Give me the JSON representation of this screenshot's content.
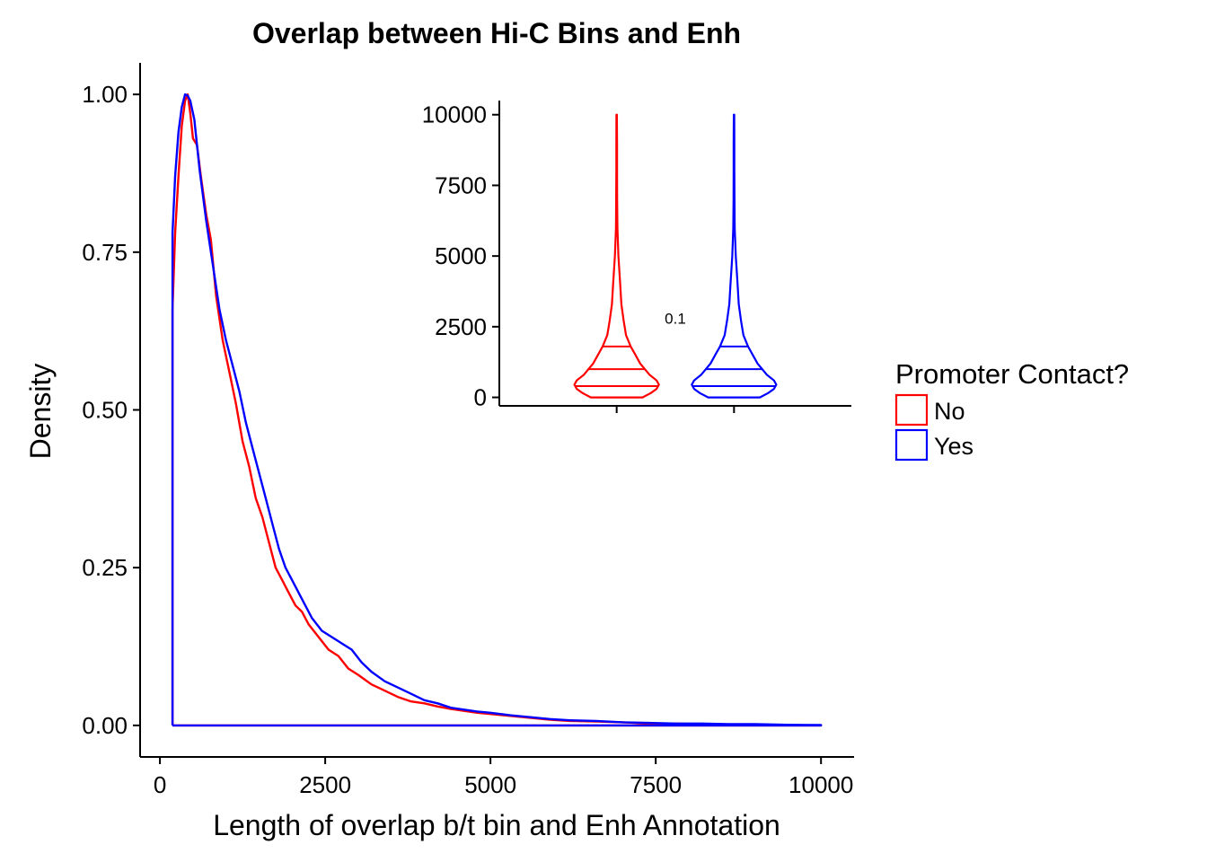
{
  "chart_data": [
    {
      "type": "area",
      "title": "Overlap between Hi-C Bins and Enh",
      "xlabel": "Length of overlap b/t bin and Enh Annotation",
      "ylabel": "Density",
      "xlim": [
        -300,
        10500
      ],
      "ylim": [
        -0.05,
        1.05
      ],
      "x_ticks": [
        "0",
        "2500",
        "5000",
        "7500",
        "10000"
      ],
      "y_ticks": [
        "0.00",
        "0.25",
        "0.50",
        "0.75",
        "1.00"
      ],
      "grid": false,
      "legend": {
        "title": "Promoter Contact?",
        "placement": "right",
        "entries": [
          "No",
          "Yes"
        ]
      },
      "series": [
        {
          "name": "No",
          "color": "#FF0000",
          "x": [
            190,
            190,
            230,
            280,
            330,
            380,
            420,
            460,
            500,
            560,
            620,
            700,
            770,
            850,
            950,
            1050,
            1150,
            1250,
            1350,
            1450,
            1550,
            1650,
            1750,
            1850,
            1950,
            2050,
            2150,
            2250,
            2400,
            2550,
            2700,
            2850,
            3000,
            3200,
            3400,
            3600,
            3800,
            4000,
            4200,
            4400,
            4600,
            4800,
            5000,
            5300,
            5600,
            5900,
            6200,
            6600,
            7000,
            7400,
            7800,
            8200,
            8600,
            9000,
            9500,
            10000,
            10000,
            190
          ],
          "y": [
            0.0,
            0.66,
            0.78,
            0.87,
            0.95,
            0.99,
            1.0,
            0.97,
            0.93,
            0.92,
            0.87,
            0.81,
            0.77,
            0.68,
            0.61,
            0.56,
            0.51,
            0.45,
            0.41,
            0.36,
            0.33,
            0.29,
            0.25,
            0.23,
            0.21,
            0.19,
            0.18,
            0.16,
            0.14,
            0.12,
            0.11,
            0.09,
            0.08,
            0.065,
            0.055,
            0.045,
            0.038,
            0.035,
            0.03,
            0.026,
            0.023,
            0.02,
            0.018,
            0.015,
            0.012,
            0.009,
            0.007,
            0.006,
            0.005,
            0.003,
            0.003,
            0.002,
            0.001,
            0.001,
            0.0005,
            0.0,
            0.0,
            0.0
          ]
        },
        {
          "name": "Yes",
          "color": "#0000FF",
          "x": [
            190,
            190,
            230,
            280,
            330,
            380,
            420,
            460,
            520,
            600,
            700,
            800,
            900,
            1000,
            1100,
            1200,
            1300,
            1400,
            1500,
            1600,
            1700,
            1800,
            1900,
            2000,
            2150,
            2300,
            2450,
            2600,
            2750,
            2900,
            3050,
            3200,
            3400,
            3600,
            3800,
            4000,
            4200,
            4400,
            4600,
            4800,
            5000,
            5300,
            5600,
            5900,
            6200,
            6600,
            7000,
            7400,
            7800,
            8200,
            8600,
            9000,
            9500,
            10000,
            10000,
            190
          ],
          "y": [
            0.0,
            0.78,
            0.87,
            0.94,
            0.98,
            1.0,
            0.998,
            0.99,
            0.96,
            0.88,
            0.8,
            0.73,
            0.66,
            0.61,
            0.57,
            0.53,
            0.48,
            0.44,
            0.4,
            0.36,
            0.32,
            0.28,
            0.25,
            0.23,
            0.2,
            0.17,
            0.15,
            0.14,
            0.13,
            0.12,
            0.1,
            0.085,
            0.07,
            0.06,
            0.05,
            0.04,
            0.035,
            0.028,
            0.025,
            0.022,
            0.02,
            0.016,
            0.013,
            0.01,
            0.008,
            0.007,
            0.005,
            0.004,
            0.003,
            0.003,
            0.002,
            0.002,
            0.001,
            0.0005,
            0.0,
            0.0
          ]
        }
      ]
    },
    {
      "type": "violin",
      "ylim": [
        -300,
        10500
      ],
      "y_ticks": [
        "0",
        "2500",
        "5000",
        "7500",
        "10000"
      ],
      "annotation": "0.1",
      "quantile_lines": [
        400,
        1000,
        1800
      ],
      "series": [
        {
          "name": "No",
          "color": "#FF0000",
          "y": [
            0,
            150,
            300,
            450,
            600,
            800,
            1000,
            1200,
            1500,
            1800,
            2200,
            2700,
            3300,
            4000,
            5000,
            6000,
            7000,
            8000,
            9000,
            10000
          ],
          "width": [
            0.22,
            0.29,
            0.34,
            0.36,
            0.34,
            0.28,
            0.24,
            0.2,
            0.16,
            0.12,
            0.08,
            0.06,
            0.04,
            0.03,
            0.015,
            0.006,
            0.004,
            0.003,
            0.003,
            0.002
          ]
        },
        {
          "name": "Yes",
          "color": "#0000FF",
          "y": [
            0,
            150,
            300,
            450,
            600,
            800,
            1000,
            1200,
            1500,
            1800,
            2200,
            2700,
            3300,
            4000,
            5000,
            6000,
            7000,
            8000,
            9000,
            10000
          ],
          "width": [
            0.22,
            0.29,
            0.34,
            0.36,
            0.34,
            0.28,
            0.24,
            0.2,
            0.16,
            0.12,
            0.08,
            0.06,
            0.04,
            0.03,
            0.015,
            0.006,
            0.004,
            0.003,
            0.003,
            0.002
          ]
        }
      ]
    }
  ]
}
